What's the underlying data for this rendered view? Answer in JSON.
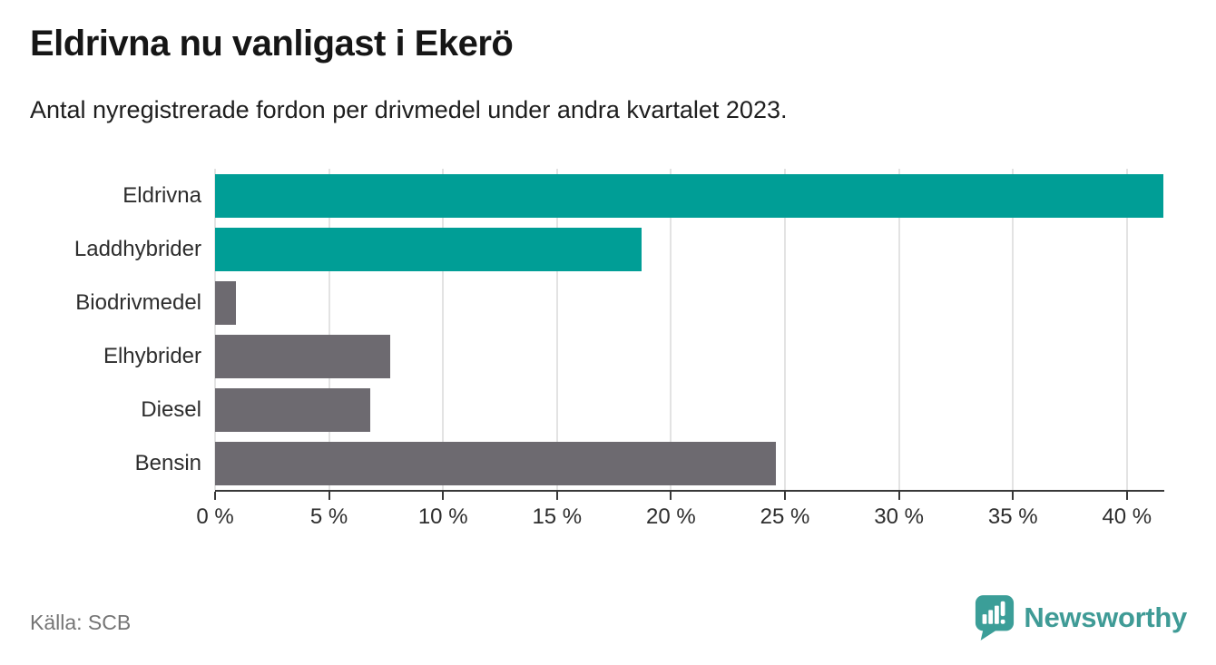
{
  "header": {
    "title": "Eldrivna nu vanligast i Ekerö",
    "subtitle": "Antal nyregistrerade fordon per drivmedel under andra kvartalet 2023."
  },
  "chart_data": {
    "type": "bar",
    "orientation": "horizontal",
    "title": "Eldrivna nu vanligast i Ekerö",
    "subtitle": "Antal nyregistrerade fordon per drivmedel under andra kvartalet 2023.",
    "categories": [
      "Eldrivna",
      "Laddhybrider",
      "Biodrivmedel",
      "Elhybrider",
      "Diesel",
      "Bensin"
    ],
    "values": [
      41.6,
      18.7,
      0.9,
      7.7,
      6.8,
      24.6
    ],
    "unit": "%",
    "bar_colors": [
      "#009e96",
      "#009e96",
      "#6d6a70",
      "#6d6a70",
      "#6d6a70",
      "#6d6a70"
    ],
    "xlabel": "",
    "ylabel": "",
    "xlim": [
      0,
      41.6
    ],
    "x_ticks": [
      0,
      5,
      10,
      15,
      20,
      25,
      30,
      35,
      40
    ],
    "x_tick_labels": [
      "0 %",
      "5 %",
      "10 %",
      "15 %",
      "20 %",
      "25 %",
      "30 %",
      "35 %",
      "40 %"
    ],
    "grid": "vertical-gridlines-on",
    "legend": "none"
  },
  "footer": {
    "source": "Källa: SCB",
    "brand": "Newsworthy",
    "logo_icon": "speech-bubble-bar-chart-icon"
  },
  "colors": {
    "accent_teal": "#009e96",
    "bar_gray": "#6d6a70",
    "brand_teal": "#3f9b96",
    "gridline": "#e3e3e3",
    "axis": "#383838",
    "source_text": "#757575"
  }
}
